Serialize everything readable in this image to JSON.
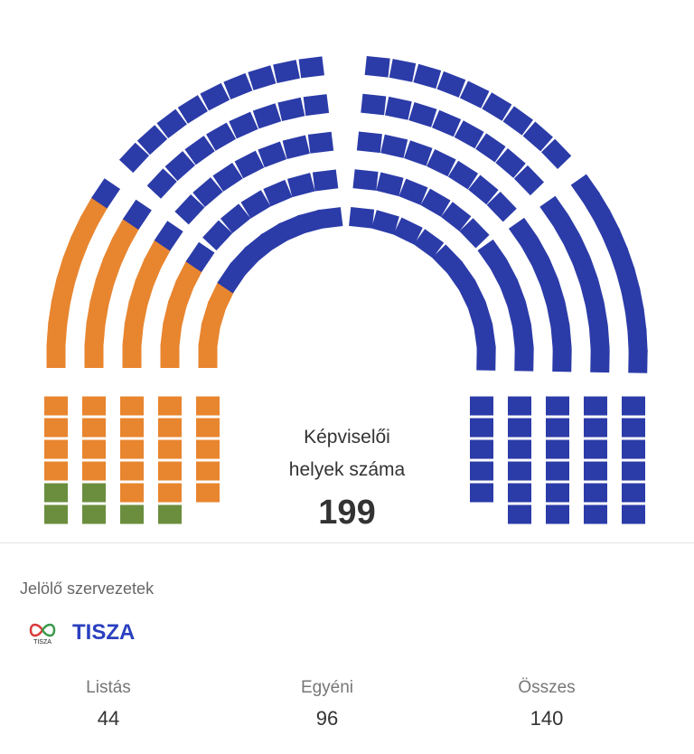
{
  "chart_data": {
    "type": "parliament",
    "total_seats": 199,
    "parties": [
      {
        "color": "#2B3BA8",
        "seats": 140
      },
      {
        "color": "#E8852F",
        "seats": 53
      },
      {
        "color": "#6B8E3E",
        "seats": 6
      }
    ]
  },
  "center": {
    "line1": "Képviselői",
    "line2": "helyek száma",
    "total": "199"
  },
  "section_title": "Jelölő szervezetek",
  "party": {
    "name": "TISZA",
    "logo_text": "TISZA",
    "color": "#2a3fbf"
  },
  "stats": [
    {
      "label": "Listás",
      "value": "44"
    },
    {
      "label": "Egyéni",
      "value": "96"
    },
    {
      "label": "Összes",
      "value": "140"
    }
  ]
}
